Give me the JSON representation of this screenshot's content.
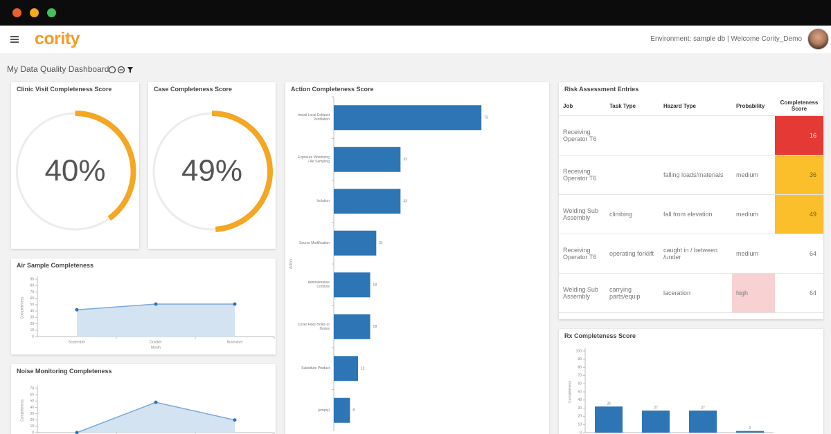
{
  "header": {
    "logo": "cority",
    "user_info": "Environment: sample db | Welcome Cority_Demo"
  },
  "dashboard_title": "My Data Quality Dashboard",
  "panels": [
    {
      "type": "gauge",
      "title": "Clinic Visit Completeness Score",
      "values": [
        40
      ],
      "value_labels": [
        "40%"
      ],
      "max": 100,
      "color": "#f5a623"
    },
    {
      "type": "gauge",
      "title": "Case Completeness Score",
      "values": [
        49
      ],
      "value_labels": [
        "49%"
      ],
      "max": 100,
      "color": "#f5a623"
    },
    {
      "type": "hbar",
      "title": "Action Completeness Score",
      "y_label": "Action",
      "categories": [
        "Install Local Exhaust Ventilation",
        "Exposure Monitoring / Air Sampling",
        "Isolation",
        "Source Modification",
        "Administrative Controls",
        "Cover Floor Holes or Drains",
        "Substitute Product",
        "(empty)"
      ],
      "values": [
        73,
        33,
        33,
        21,
        18,
        18,
        12,
        8
      ],
      "xlim": [
        0,
        100
      ],
      "color": "#2e75b6"
    },
    {
      "type": "table",
      "title": "Risk Assessment Entries",
      "columns": [
        "Job",
        "Task Type",
        "Hazard Type",
        "Probability",
        "Completeness Score"
      ],
      "rows": [
        {
          "cells": [
            "Receiving Operator T6",
            null,
            null,
            null
          ],
          "score": 16,
          "score_color": "#e53935"
        },
        {
          "cells": [
            "Receiving Operator T6",
            null,
            "falling loads/materials",
            "medium"
          ],
          "score": 36,
          "score_color": "#fbbf2c"
        },
        {
          "cells": [
            "Welding Sub Assembly",
            "climbing",
            "fall from elevation",
            "medium"
          ],
          "score": 49,
          "score_color": "#fbbf2c"
        },
        {
          "cells": [
            "Receiving Operator T6",
            "operating forklift",
            "caught in / between /under",
            "medium"
          ],
          "score": 64
        },
        {
          "cells": [
            "Welding Sub Assembly",
            "carrying parts/equip",
            "laceration",
            "high"
          ],
          "score": 64,
          "probability_color": "#f8d2d2"
        }
      ]
    },
    {
      "type": "area",
      "title": "Air Sample Completeness",
      "x_label": "Month",
      "y_label": "Completeness",
      "categories": [
        "September",
        "October",
        "November"
      ],
      "values": [
        42,
        51,
        51
      ],
      "ylim": [
        0,
        90
      ],
      "yticks": [
        0,
        10,
        20,
        30,
        40,
        50,
        60,
        70,
        80,
        90
      ],
      "color": "#2e75b6"
    },
    {
      "type": "area",
      "title": "Noise Monitoring Completeness",
      "y_label": "Completeness",
      "categories": [
        null,
        null,
        null
      ],
      "values": [
        0,
        48,
        20
      ],
      "ylim": [
        0,
        70
      ],
      "yticks": [
        0,
        10,
        20,
        30,
        40,
        50,
        60,
        70
      ],
      "color": "#2e75b6"
    },
    {
      "type": "bar",
      "title": "Rx Completeness Score",
      "y_label": "Completeness",
      "categories": [
        null,
        null,
        null,
        null
      ],
      "values": [
        32,
        27,
        27,
        2
      ],
      "ylim": [
        0,
        100
      ],
      "yticks": [
        0,
        10,
        20,
        30,
        40,
        50,
        60,
        70,
        80,
        90,
        100
      ],
      "color": "#2e75b6"
    }
  ]
}
